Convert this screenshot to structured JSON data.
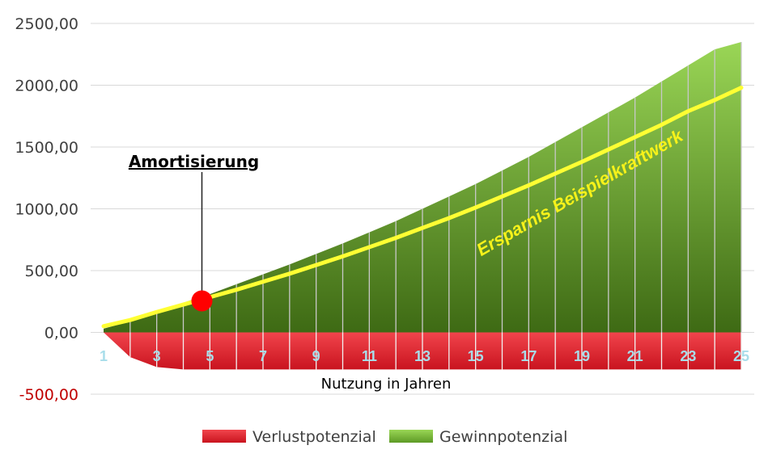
{
  "chart_data": {
    "type": "area",
    "x": [
      1,
      2,
      3,
      4,
      5,
      6,
      7,
      8,
      9,
      10,
      11,
      12,
      13,
      14,
      15,
      16,
      17,
      18,
      19,
      20,
      21,
      22,
      23,
      24,
      25
    ],
    "x_tick_labels": [
      "1",
      "3",
      "5",
      "7",
      "9",
      "11",
      "13",
      "15",
      "17",
      "19",
      "21",
      "23",
      "25"
    ],
    "xlabel": "Nutzung in Jahren",
    "ylabel": "",
    "ylim": [
      -500,
      2500
    ],
    "y_tick_labels": [
      "2500,00",
      "2000,00",
      "1500,00",
      "1000,00",
      "500,00",
      "0,00",
      "-500,00"
    ],
    "series": [
      {
        "name": "Verlustpotenzial",
        "color": "#e8313a",
        "values": [
          0,
          -200,
          -280,
          -300,
          -300,
          -300,
          -300,
          -300,
          -300,
          -300,
          -300,
          -300,
          -300,
          -300,
          -300,
          -300,
          -300,
          -300,
          -300,
          -300,
          -300,
          -300,
          -300,
          -300,
          -300
        ]
      },
      {
        "name": "Gewinnpotenzial",
        "color": "#7dbf3a",
        "values": [
          30,
          90,
          165,
          240,
          310,
          390,
          470,
          550,
          635,
          720,
          810,
          900,
          1000,
          1100,
          1200,
          1310,
          1420,
          1540,
          1660,
          1780,
          1900,
          2030,
          2160,
          2290,
          2350
        ]
      },
      {
        "name": "Ersparnis Beispielkraftwerk",
        "color": "#ffff33",
        "values": [
          50,
          100,
          165,
          225,
          285,
          345,
          410,
          475,
          545,
          615,
          690,
          765,
          845,
          925,
          1010,
          1100,
          1190,
          1285,
          1380,
          1480,
          1580,
          1680,
          1790,
          1880,
          1980
        ]
      }
    ],
    "annotations": [
      {
        "text": "Amortisierung",
        "x": 4.7,
        "y": 255
      }
    ],
    "legend": [
      "Verlustpotenzial",
      "Gewinnpotenzial"
    ],
    "legend_position": "bottom",
    "grid": true
  }
}
